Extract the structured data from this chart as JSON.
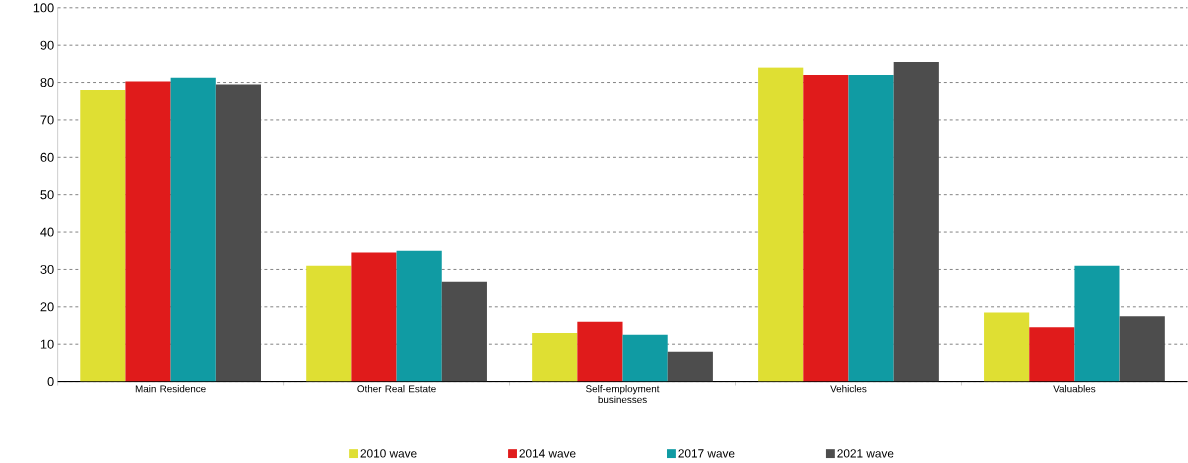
{
  "chart_data": {
    "type": "bar",
    "categories": [
      "Main Residence",
      "Other Real Estate",
      "Self-employment businesses",
      "Vehicles",
      "Valuables"
    ],
    "series": [
      {
        "name": "2010 wave",
        "color": "#dfdf33",
        "values": [
          78,
          31,
          13,
          84,
          18.5
        ]
      },
      {
        "name": "2014 wave",
        "color": "#e01b1b",
        "values": [
          80.3,
          34.5,
          16,
          82,
          14.5
        ]
      },
      {
        "name": "2017 wave",
        "color": "#109ba3",
        "values": [
          81.3,
          35,
          12.5,
          82,
          31
        ]
      },
      {
        "name": "2021 wave",
        "color": "#4d4d4d",
        "values": [
          79.5,
          26.7,
          8,
          85.5,
          17.5
        ]
      }
    ],
    "ylim": [
      0,
      100
    ],
    "yticks": [
      0,
      10,
      20,
      30,
      40,
      50,
      60,
      70,
      80,
      90,
      100
    ],
    "grid": "y",
    "legend": "bottom"
  }
}
